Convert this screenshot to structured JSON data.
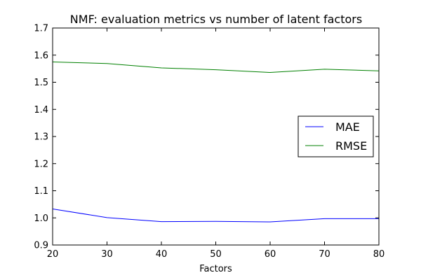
{
  "chart_data": {
    "type": "line",
    "title": "NMF: evaluation metrics vs number of latent factors",
    "xlabel": "Factors",
    "ylabel": "",
    "x": [
      20,
      30,
      40,
      50,
      60,
      70,
      80
    ],
    "xlim": [
      20,
      80
    ],
    "ylim": [
      0.9,
      1.7
    ],
    "xticks": [
      "20",
      "30",
      "40",
      "50",
      "60",
      "70",
      "80"
    ],
    "yticks": [
      "0.9",
      "1.0",
      "1.1",
      "1.2",
      "1.3",
      "1.4",
      "1.5",
      "1.6",
      "1.7"
    ],
    "grid": false,
    "legend_position": "center-right",
    "series": [
      {
        "name": "MAE",
        "color": "#0000ff",
        "values": [
          1.033,
          1.001,
          0.986,
          0.987,
          0.985,
          0.997,
          0.997
        ]
      },
      {
        "name": "RMSE",
        "color": "#008000",
        "values": [
          1.575,
          1.569,
          1.553,
          1.546,
          1.536,
          1.548,
          1.542
        ]
      }
    ]
  }
}
